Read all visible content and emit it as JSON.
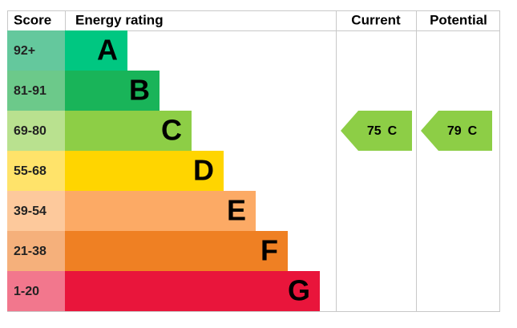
{
  "header": {
    "score": "Score",
    "energy_rating": "Energy rating",
    "current": "Current",
    "potential": "Potential"
  },
  "bands": [
    {
      "score": "92+",
      "letter": "A",
      "color": "#00c781",
      "score_color": "#64c89d"
    },
    {
      "score": "81-91",
      "letter": "B",
      "color": "#19b459",
      "score_color": "#6cc98a"
    },
    {
      "score": "69-80",
      "letter": "C",
      "color": "#8dce46",
      "score_color": "#b9e18f"
    },
    {
      "score": "55-68",
      "letter": "D",
      "color": "#ffd500",
      "score_color": "#ffe36a"
    },
    {
      "score": "39-54",
      "letter": "E",
      "color": "#fcaa65",
      "score_color": "#fdc99c"
    },
    {
      "score": "21-38",
      "letter": "F",
      "color": "#ef8023",
      "score_color": "#f5b07b"
    },
    {
      "score": "1-20",
      "letter": "G",
      "color": "#e9153b",
      "score_color": "#f2778d"
    }
  ],
  "current": {
    "value": 75,
    "letter": "C"
  },
  "potential": {
    "value": 79,
    "letter": "C"
  }
}
